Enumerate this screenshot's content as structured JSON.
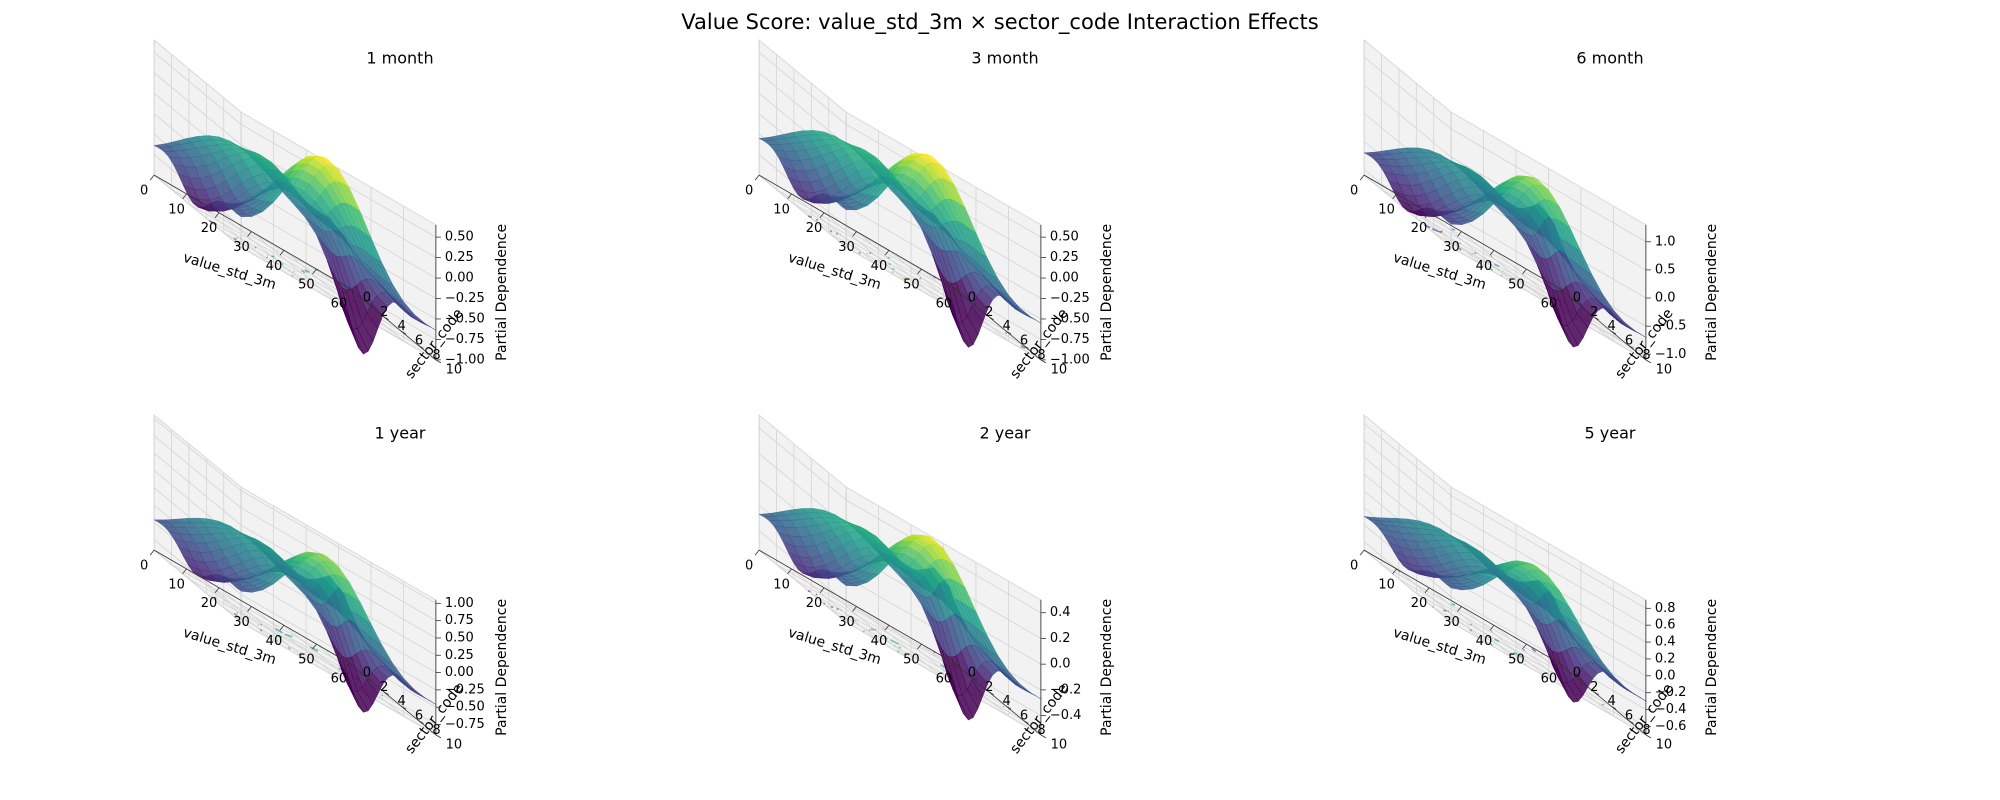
{
  "title": "Value Score: value_std_3m × sector_code Interaction Effects",
  "chart_data": [
    {
      "type": "surface3d",
      "title": "1 month",
      "xlabel": "value_std_3m",
      "ylabel": "sector_code",
      "zlabel": "Partial Dependence",
      "x_ticks": [
        0,
        10,
        20,
        30,
        40,
        50,
        60
      ],
      "y_ticks": [
        0,
        2,
        4,
        6,
        8,
        10
      ],
      "z_ticks": [
        "−1.00",
        "−0.75",
        "−0.50",
        "−0.25",
        "0.00",
        "0.25",
        "0.50"
      ],
      "xlim": [
        0,
        60
      ],
      "ylim": [
        0,
        10
      ],
      "zlim": [
        -1.0,
        0.65
      ],
      "colormap": "viridis",
      "shape": {
        "ridge_peak": 0.62,
        "valley_min": -0.95,
        "corner_drop": -1.0,
        "inner_bump": -0.3
      }
    },
    {
      "type": "surface3d",
      "title": "3 month",
      "xlabel": "value_std_3m",
      "ylabel": "sector_code",
      "zlabel": "Partial Dependence",
      "x_ticks": [
        0,
        10,
        20,
        30,
        40,
        50,
        60
      ],
      "y_ticks": [
        0,
        2,
        4,
        6,
        8,
        10
      ],
      "z_ticks": [
        "−1.00",
        "−0.75",
        "−0.50",
        "−0.25",
        "0.00",
        "0.25",
        "0.50"
      ],
      "xlim": [
        0,
        60
      ],
      "ylim": [
        0,
        10
      ],
      "zlim": [
        -1.0,
        0.65
      ],
      "colormap": "viridis",
      "shape": {
        "ridge_peak": 0.65,
        "valley_min": -0.85,
        "corner_drop": -0.98,
        "inner_bump": -0.3
      }
    },
    {
      "type": "surface3d",
      "title": "6 month",
      "xlabel": "value_std_3m",
      "ylabel": "sector_code",
      "zlabel": "Partial Dependence",
      "x_ticks": [
        0,
        10,
        20,
        30,
        40,
        50,
        60
      ],
      "y_ticks": [
        0,
        2,
        4,
        6,
        8,
        10
      ],
      "z_ticks": [
        "−1.0",
        "−0.5",
        "0.0",
        "0.5",
        "1.0"
      ],
      "xlim": [
        0,
        60
      ],
      "ylim": [
        0,
        10
      ],
      "zlim": [
        -1.1,
        1.3
      ],
      "colormap": "viridis",
      "shape": {
        "ridge_peak": 0.9,
        "valley_min": -1.1,
        "corner_drop": -1.05,
        "inner_bump": 0.7
      }
    },
    {
      "type": "surface3d",
      "title": "1 year",
      "xlabel": "value_std_3m",
      "ylabel": "sector_code",
      "zlabel": "Partial Dependence",
      "x_ticks": [
        0,
        10,
        20,
        30,
        40,
        50,
        60
      ],
      "y_ticks": [
        0,
        2,
        4,
        6,
        8,
        10
      ],
      "z_ticks": [
        "−0.75",
        "−0.50",
        "−0.25",
        "0.00",
        "0.25",
        "0.50",
        "0.75",
        "1.00"
      ],
      "xlim": [
        0,
        60
      ],
      "ylim": [
        0,
        10
      ],
      "zlim": [
        -0.9,
        1.05
      ],
      "colormap": "viridis",
      "shape": {
        "ridge_peak": 0.7,
        "valley_min": -0.75,
        "corner_drop": -0.85,
        "inner_bump": 0.6
      }
    },
    {
      "type": "surface3d",
      "title": "2 year",
      "xlabel": "value_std_3m",
      "ylabel": "sector_code",
      "zlabel": "Partial Dependence",
      "x_ticks": [
        0,
        10,
        20,
        30,
        40,
        50,
        60
      ],
      "y_ticks": [
        0,
        2,
        4,
        6,
        8,
        10
      ],
      "z_ticks": [
        "−0.4",
        "−0.2",
        "0.0",
        "0.2",
        "0.4"
      ],
      "xlim": [
        0,
        60
      ],
      "ylim": [
        0,
        10
      ],
      "zlim": [
        -0.55,
        0.5
      ],
      "colormap": "viridis",
      "shape": {
        "ridge_peak": 0.45,
        "valley_min": -0.45,
        "corner_drop": -0.55,
        "inner_bump": 0.3
      }
    },
    {
      "type": "surface3d",
      "title": "5 year",
      "xlabel": "value_std_3m",
      "ylabel": "sector_code",
      "zlabel": "Partial Dependence",
      "x_ticks": [
        0,
        10,
        20,
        30,
        40,
        50,
        60
      ],
      "y_ticks": [
        0,
        2,
        4,
        6,
        8,
        10
      ],
      "z_ticks": [
        "−0.6",
        "−0.4",
        "−0.2",
        "0.0",
        "0.2",
        "0.4",
        "0.6",
        "0.8"
      ],
      "xlim": [
        0,
        60
      ],
      "ylim": [
        0,
        10
      ],
      "zlim": [
        -0.7,
        0.9
      ],
      "colormap": "viridis",
      "shape": {
        "ridge_peak": 0.5,
        "valley_min": -0.5,
        "corner_drop": -0.65,
        "inner_bump": 0.45
      }
    }
  ]
}
